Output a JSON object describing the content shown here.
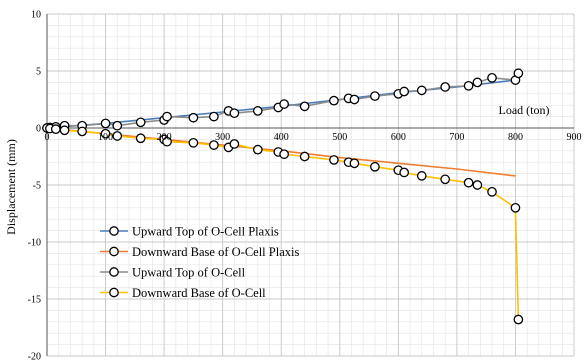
{
  "chart_data": {
    "type": "line",
    "title": "",
    "xlabel": "Load (ton)",
    "ylabel": "Displacement (mm)",
    "xlim": [
      0,
      900
    ],
    "ylim": [
      -20,
      10
    ],
    "x_ticks": [
      0,
      100,
      200,
      300,
      400,
      500,
      600,
      700,
      800,
      900
    ],
    "y_ticks": [
      -20,
      -15,
      -10,
      -5,
      0,
      5,
      10
    ],
    "x_tick_labels": [
      "0",
      "100",
      "200",
      "300",
      "400",
      "500",
      "600",
      "700",
      "800",
      "900"
    ],
    "y_tick_labels": [
      "-20",
      "-15",
      "-10",
      "-5",
      "0",
      "5",
      "10"
    ],
    "grid": true,
    "legend_position": "bottom-left",
    "series": [
      {
        "name": "Upward Top of O-Cell Plaxis",
        "color": "#4a7ebb",
        "marker": false,
        "x": [
          0,
          100,
          200,
          300,
          400,
          500,
          600,
          700,
          800
        ],
        "y": [
          0,
          0.4,
          0.9,
          1.4,
          1.9,
          2.5,
          3.1,
          3.6,
          4.2
        ]
      },
      {
        "name": "Downward Base of O-Cell Plaxis",
        "color": "#ed7d31",
        "marker": false,
        "x": [
          0,
          100,
          200,
          300,
          400,
          500,
          600,
          700,
          800
        ],
        "y": [
          0,
          -0.5,
          -1.0,
          -1.5,
          -2.0,
          -2.6,
          -3.1,
          -3.6,
          -4.2
        ]
      },
      {
        "name": "Upward Top of O-Cell",
        "color": "#8c8c8c",
        "marker": true,
        "x": [
          0,
          5,
          15,
          30,
          60,
          100,
          120,
          160,
          200,
          205,
          250,
          285,
          310,
          320,
          360,
          395,
          405,
          440,
          490,
          515,
          525,
          560,
          600,
          610,
          640,
          680,
          720,
          735,
          760,
          800,
          805
        ],
        "y": [
          0,
          0.05,
          0.1,
          0.2,
          0.2,
          0.4,
          0.2,
          0.5,
          0.7,
          1.0,
          0.9,
          1.0,
          1.5,
          1.3,
          1.5,
          1.8,
          2.1,
          1.9,
          2.4,
          2.6,
          2.5,
          2.8,
          3.0,
          3.2,
          3.3,
          3.6,
          3.7,
          4.0,
          4.4,
          4.2,
          4.8
        ]
      },
      {
        "name": "Downward Base of O-Cell",
        "color": "#ffc000",
        "marker": true,
        "x": [
          0,
          5,
          15,
          30,
          60,
          100,
          120,
          160,
          200,
          205,
          250,
          285,
          310,
          320,
          360,
          395,
          405,
          440,
          490,
          515,
          525,
          560,
          600,
          610,
          640,
          680,
          720,
          735,
          760,
          800,
          805
        ],
        "y": [
          0,
          -0.05,
          -0.1,
          -0.2,
          -0.3,
          -0.5,
          -0.7,
          -0.9,
          -1.0,
          -1.2,
          -1.3,
          -1.5,
          -1.7,
          -1.4,
          -1.9,
          -2.1,
          -2.3,
          -2.5,
          -2.8,
          -3.0,
          -3.1,
          -3.4,
          -3.7,
          -3.9,
          -4.2,
          -4.5,
          -4.8,
          -5.0,
          -5.6,
          -7.0,
          -16.8
        ]
      }
    ]
  }
}
